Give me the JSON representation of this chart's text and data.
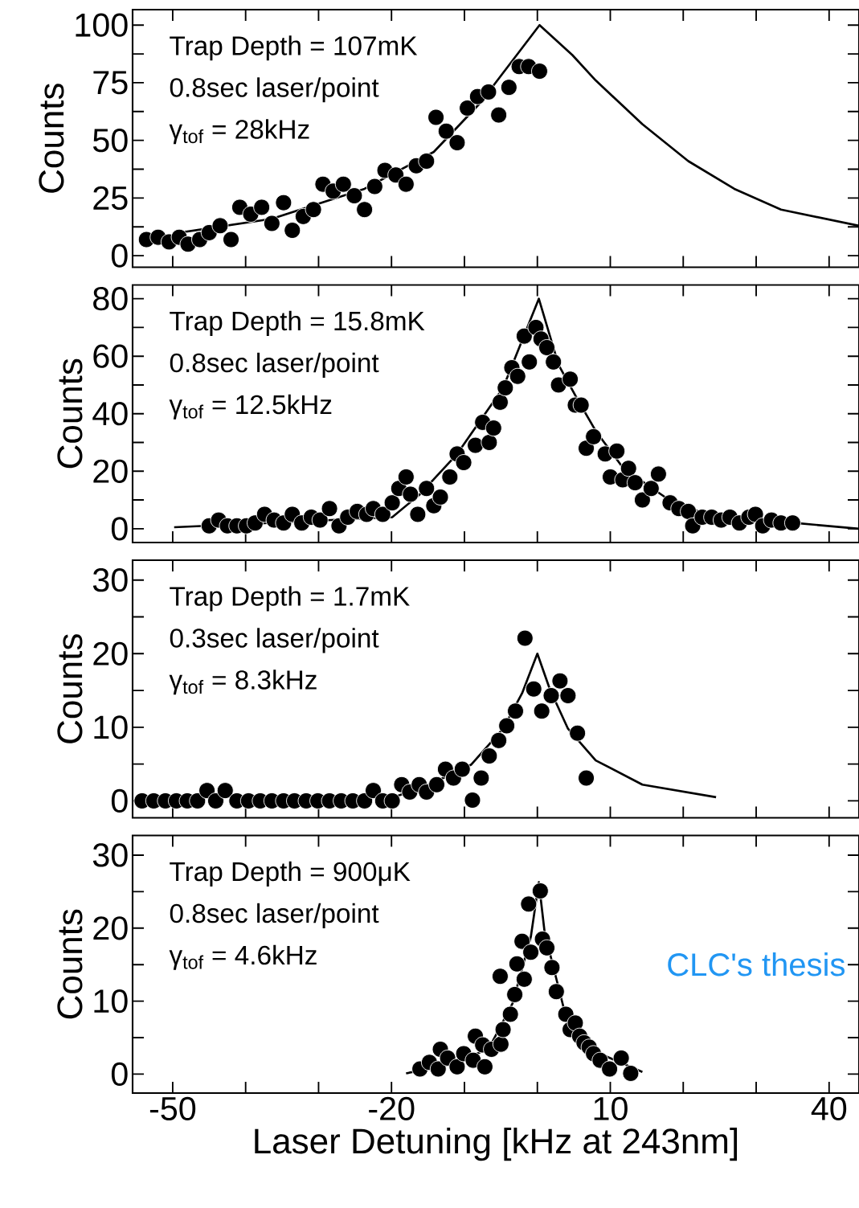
{
  "chart_data": [
    {
      "type": "scatter",
      "ylabel": "Counts",
      "xlim": [
        -55.5,
        44.1
      ],
      "ylim": [
        -5,
        106.7
      ],
      "tick_labels": "y",
      "xticks": [
        -50,
        {
          "value": -40,
          "label": null
        },
        {
          "value": -30,
          "label": null
        },
        -20,
        {
          "value": -10,
          "label": null
        },
        {
          "value": 0,
          "label": null
        },
        10,
        {
          "value": 20,
          "label": null
        },
        {
          "value": 30,
          "label": null
        },
        40
      ],
      "yticks": [
        0,
        {
          "value": 12.5,
          "label": null
        },
        25,
        {
          "value": 37.5,
          "label": null
        },
        50,
        {
          "value": 62.5,
          "label": null
        },
        75,
        {
          "value": 87.5,
          "label": null
        },
        100
      ],
      "annotations": [
        "Trap Depth = 107mK",
        "0.8sec laser/point",
        "γ$_{tof}$ = 28kHz"
      ],
      "series": [
        {
          "marker": "circle",
          "color": "#000000",
          "x": [
            -53.6,
            -52.0,
            -50.5,
            -49.1,
            -47.9,
            -46.3,
            -45.0,
            -43.5,
            -42.0,
            -40.8,
            -39.3,
            -37.8,
            -36.4,
            -34.8,
            -33.6,
            -32.1,
            -30.7,
            -29.4,
            -28.0,
            -26.6,
            -25.1,
            -23.7,
            -22.3,
            -20.9,
            -19.4,
            -18.0,
            -16.6,
            -15.2,
            -13.9,
            -12.5,
            -11.0,
            -9.6,
            -8.2,
            -6.7,
            -5.3,
            -3.9,
            -2.5,
            -1.2,
            0.3
          ],
          "values": [
            7,
            8,
            6,
            8,
            5,
            7,
            10,
            13,
            7,
            21,
            18,
            21,
            14,
            23,
            11,
            17,
            20,
            31,
            28,
            31,
            26,
            20,
            30,
            37,
            35,
            31,
            39,
            41,
            60,
            54,
            49,
            64,
            69,
            71,
            61,
            73,
            82,
            82,
            80
          ]
        },
        {
          "type": "line",
          "marker": "none",
          "color": "#000000",
          "x": [
            -49.1,
            -36.4,
            -23.7,
            -14.2,
            -7.9,
            0.3,
            4.8,
            8.0,
            14.4,
            20.7,
            27.0,
            33.4,
            44.1
          ],
          "values": [
            10,
            16,
            29,
            45,
            66,
            100,
            87,
            76,
            57,
            41,
            29,
            20,
            13
          ]
        }
      ]
    },
    {
      "type": "scatter",
      "ylabel": "Counts",
      "xlim": [
        -55.5,
        44.1
      ],
      "ylim": [
        -4.8,
        84.8
      ],
      "tick_labels": "y",
      "xticks": [
        -50,
        {
          "value": -40,
          "label": null
        },
        {
          "value": -30,
          "label": null
        },
        -20,
        {
          "value": -10,
          "label": null
        },
        {
          "value": 0,
          "label": null
        },
        10,
        {
          "value": 20,
          "label": null
        },
        {
          "value": 30,
          "label": null
        },
        40
      ],
      "yticks": [
        0,
        {
          "value": 10,
          "label": null
        },
        20,
        {
          "value": 30,
          "label": null
        },
        40,
        {
          "value": 50,
          "label": null
        },
        60,
        {
          "value": 70,
          "label": null
        },
        80
      ],
      "annotations": [
        "Trap Depth = 15.8mK",
        "0.8sec laser/point",
        "γ$_{tof}$ = 12.5kHz"
      ],
      "series": [
        {
          "marker": "circle",
          "color": "#000000",
          "x": [
            -45.0,
            -43.7,
            -42.5,
            -41.2,
            -39.9,
            -38.7,
            -37.4,
            -36.1,
            -34.8,
            -33.6,
            -32.3,
            -31.0,
            -29.8,
            -28.5,
            -27.2,
            -26.0,
            -24.7,
            -23.4,
            -22.5,
            -21.2,
            -19.9,
            -19.0,
            -18.0,
            -17.4,
            -16.4,
            -15.2,
            -14.2,
            -13.3,
            -12.0,
            -11.0,
            -10.1,
            -8.5,
            -7.5,
            -6.6,
            -6.0,
            -5.1,
            -4.4,
            -3.5,
            -2.7,
            -1.8,
            -1.1,
            -0.2,
            0.5,
            1.3,
            2.2,
            2.9,
            4.5,
            5.2,
            6.0,
            6.7,
            7.7,
            9.3,
            10.9,
            10.0,
            11.7,
            12.5,
            13.4,
            14.4,
            15.6,
            16.6,
            18.2,
            19.4,
            20.7,
            21.3,
            22.6,
            23.9,
            25.2,
            26.4,
            27.7,
            29.0,
            29.9,
            30.9,
            32.1,
            33.4,
            35.0
          ],
          "values": [
            1,
            3,
            1,
            1,
            1,
            2,
            5,
            3,
            2,
            5,
            2,
            4,
            3,
            7,
            1,
            4,
            6,
            5,
            7,
            5,
            9,
            14,
            18,
            12,
            5,
            14,
            8,
            11,
            18,
            26,
            23,
            29,
            37,
            30,
            35,
            44,
            49,
            56,
            53,
            67,
            58,
            70,
            66,
            63,
            58,
            50,
            52,
            43,
            43,
            28,
            32,
            26,
            27,
            18,
            17,
            21,
            16,
            10,
            14,
            19,
            9,
            7,
            6,
            1,
            4,
            4,
            3,
            4,
            2,
            4,
            5,
            1,
            3,
            2,
            2
          ]
        },
        {
          "type": "line",
          "marker": "none",
          "color": "#000000",
          "x": [
            -49.8,
            -19.9,
            -16.1,
            -11.0,
            -4.7,
            0.2,
            2.9,
            5.5,
            8.0,
            11.8,
            17.5,
            23.9,
            35.3,
            44.1
          ],
          "values": [
            0.5,
            4,
            12,
            26,
            49,
            80,
            57,
            45,
            34,
            21,
            11,
            4,
            2,
            0
          ]
        }
      ]
    },
    {
      "type": "scatter",
      "ylabel": "Counts",
      "xlim": [
        -55.5,
        44.1
      ],
      "ylim": [
        -2.3,
        32.7
      ],
      "tick_labels": "y",
      "xticks": [
        -50,
        {
          "value": -40,
          "label": null
        },
        {
          "value": -30,
          "label": null
        },
        -20,
        {
          "value": -10,
          "label": null
        },
        {
          "value": 0,
          "label": null
        },
        10,
        {
          "value": 20,
          "label": null
        },
        {
          "value": 30,
          "label": null
        },
        40
      ],
      "yticks": [
        0,
        {
          "value": 5,
          "label": null
        },
        10,
        {
          "value": 15,
          "label": null
        },
        20,
        {
          "value": 25,
          "label": null
        },
        30
      ],
      "annotations": [
        "Trap Depth = 1.7mK",
        "0.3sec laser/point",
        "γ$_{tof}$ = 8.3kHz"
      ],
      "series": [
        {
          "marker": "circle",
          "color": "#000000",
          "x": [
            -54.2,
            -52.6,
            -51.0,
            -49.5,
            -48.0,
            -46.6,
            -45.3,
            -44.1,
            -42.8,
            -41.2,
            -39.6,
            -38.0,
            -36.4,
            -34.8,
            -33.3,
            -31.7,
            -30.1,
            -28.5,
            -26.9,
            -25.3,
            -23.7,
            -22.5,
            -21.2,
            -19.9,
            -18.6,
            -17.5,
            -16.2,
            -15.2,
            -13.8,
            -12.6,
            -11.5,
            -10.3,
            -8.9,
            -7.7,
            -6.6,
            -5.3,
            -4.2,
            -3.0,
            -1.7,
            -0.5,
            0.6,
            1.9,
            3.1,
            4.2,
            5.5,
            6.7
          ],
          "values": [
            0,
            0,
            0,
            0,
            0,
            0,
            1.4,
            0,
            1.4,
            0,
            0,
            0,
            0,
            0,
            0,
            0,
            0,
            0,
            0,
            0,
            0,
            1.4,
            0,
            0,
            2.2,
            1.2,
            2.2,
            1.2,
            2.2,
            4.3,
            3.1,
            4.3,
            0.1,
            3.1,
            6.1,
            8.2,
            10.2,
            12.2,
            22.1,
            15.2,
            12.2,
            14.3,
            16.3,
            14.3,
            9.2,
            3.1
          ]
        },
        {
          "type": "line",
          "marker": "none",
          "color": "#000000",
          "x": [
            -19.9,
            -14.2,
            -9.1,
            -4.7,
            -2.1,
            0.0,
            1.7,
            4.2,
            8.0,
            14.4,
            24.5
          ],
          "values": [
            0.4,
            2.5,
            4.9,
            9.8,
            14.6,
            20,
            15.2,
            9.8,
            5.5,
            2.2,
            0.5
          ]
        }
      ]
    },
    {
      "type": "scatter",
      "ylabel": "Counts",
      "xlabel": "Laser Detuning [kHz at 243nm]",
      "xlim": [
        -55.5,
        44.1
      ],
      "ylim": [
        -2.6,
        32.7
      ],
      "xticks": [
        -50,
        {
          "value": -40,
          "label": null
        },
        {
          "value": -30,
          "label": null
        },
        -20,
        {
          "value": -10,
          "label": null
        },
        {
          "value": 0,
          "label": null
        },
        10,
        {
          "value": 20,
          "label": null
        },
        {
          "value": 30,
          "label": null
        },
        40
      ],
      "yticks": [
        0,
        {
          "value": 5,
          "label": null
        },
        10,
        {
          "value": 15,
          "label": null
        },
        20,
        {
          "value": 25,
          "label": null
        },
        30
      ],
      "annotations": [
        "Trap Depth = 900μK",
        "0.8sec laser/point",
        "γ$_{tof}$ = 4.6kHz",
        "CLC's thesis"
      ],
      "series": [
        {
          "marker": "circle",
          "color": "#000000",
          "x": [
            -16.1,
            -14.8,
            -13.6,
            -13.3,
            -12.3,
            -11.0,
            -10.1,
            -8.8,
            -8.5,
            -7.2,
            -7.5,
            -6.3,
            -5.0,
            -5.1,
            -4.7,
            -3.7,
            -3.1,
            -2.8,
            -2.1,
            -1.8,
            -1.2,
            -0.9,
            0.4,
            0.7,
            1.3,
            2.0,
            2.6,
            3.9,
            4.5,
            5.2,
            5.8,
            6.4,
            7.1,
            7.7,
            8.6,
            9.9,
            11.5,
            12.8
          ],
          "values": [
            0.7,
            1.6,
            0.7,
            3.4,
            2.2,
            1.0,
            2.8,
            1.9,
            5.2,
            1.0,
            4.0,
            3.4,
            4.1,
            13.4,
            6.1,
            8.2,
            10.9,
            15.1,
            18.2,
            13.0,
            23.3,
            16.7,
            25.1,
            18.5,
            17.3,
            14.6,
            11.3,
            8.2,
            6.1,
            7.0,
            5.2,
            4.3,
            3.7,
            2.8,
            1.9,
            0.7,
            2.2,
            0.1
          ]
        },
        {
          "type": "line",
          "marker": "none",
          "color": "#000000",
          "x": [
            -18.0,
            -11.0,
            -6.6,
            -3.4,
            -0.9,
            0.2,
            1.0,
            3.6,
            6.7,
            14.4
          ],
          "values": [
            0.1,
            1.5,
            3.6,
            9.7,
            18.8,
            26.3,
            19.4,
            9.1,
            3.6,
            0.3
          ]
        }
      ]
    }
  ]
}
